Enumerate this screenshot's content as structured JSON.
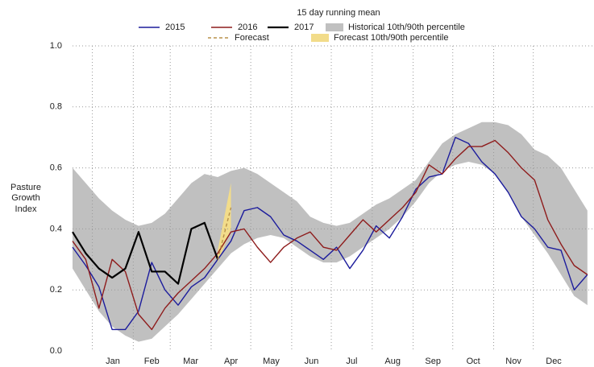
{
  "chart_data": {
    "type": "line",
    "title": "15 day running mean",
    "y_label": [
      "Pasture",
      "Growth",
      "Index"
    ],
    "x": [
      -15,
      -5,
      5,
      15,
      25,
      35,
      45,
      55,
      65,
      75,
      85,
      95,
      105,
      115,
      125,
      135,
      145,
      155,
      165,
      175,
      185,
      195,
      205,
      215,
      225,
      235,
      245,
      255,
      265,
      275,
      285,
      295,
      305,
      315,
      325,
      335,
      345,
      355,
      365,
      375
    ],
    "xlim": [
      -15,
      380
    ],
    "xticks": [
      {
        "value": 0,
        "label": "Jan"
      },
      {
        "value": 31,
        "label": "Feb"
      },
      {
        "value": 59,
        "label": "Mar"
      },
      {
        "value": 90,
        "label": "Apr"
      },
      {
        "value": 120,
        "label": "May"
      },
      {
        "value": 151,
        "label": "Jun"
      },
      {
        "value": 181,
        "label": "Jul"
      },
      {
        "value": 212,
        "label": "Aug"
      },
      {
        "value": 243,
        "label": "Sep"
      },
      {
        "value": 273,
        "label": "Oct"
      },
      {
        "value": 304,
        "label": "Nov"
      },
      {
        "value": 334,
        "label": "Dec"
      }
    ],
    "ylim": [
      0,
      1
    ],
    "yticks": [
      {
        "value": 0,
        "label": "0.0"
      },
      0.2,
      0.4,
      0.6,
      0.8,
      {
        "value": 1,
        "label": "1.0"
      }
    ],
    "grid": true,
    "bands": [
      {
        "name": "Historical 10th/90th percentile",
        "color": "#c0c0c0",
        "upper": [
          0.6,
          0.55,
          0.5,
          0.46,
          0.43,
          0.41,
          0.42,
          0.45,
          0.5,
          0.55,
          0.58,
          0.57,
          0.59,
          0.6,
          0.58,
          0.55,
          0.52,
          0.49,
          0.44,
          0.42,
          0.41,
          0.42,
          0.45,
          0.48,
          0.5,
          0.53,
          0.56,
          0.62,
          0.68,
          0.71,
          0.73,
          0.75,
          0.75,
          0.74,
          0.71,
          0.66,
          0.64,
          0.6,
          0.53,
          0.46
        ],
        "lower": [
          0.27,
          0.2,
          0.13,
          0.08,
          0.05,
          0.03,
          0.04,
          0.08,
          0.12,
          0.17,
          0.22,
          0.27,
          0.32,
          0.35,
          0.37,
          0.38,
          0.37,
          0.34,
          0.31,
          0.29,
          0.29,
          0.31,
          0.34,
          0.37,
          0.4,
          0.44,
          0.49,
          0.55,
          0.59,
          0.61,
          0.62,
          0.61,
          0.58,
          0.52,
          0.44,
          0.38,
          0.32,
          0.25,
          0.18,
          0.15
        ]
      },
      {
        "name": "Forecast 10th/90th percentile",
        "color": "#f2dc8a",
        "upper": [
          null,
          null,
          null,
          null,
          null,
          null,
          null,
          null,
          null,
          null,
          null,
          0.33,
          0.55,
          null,
          null,
          null,
          null,
          null,
          null,
          null,
          null,
          null,
          null,
          null,
          null,
          null,
          null,
          null,
          null,
          null,
          null,
          null,
          null,
          null,
          null,
          null,
          null,
          null,
          null,
          null
        ],
        "lower": [
          null,
          null,
          null,
          null,
          null,
          null,
          null,
          null,
          null,
          null,
          null,
          0.29,
          0.4,
          null,
          null,
          null,
          null,
          null,
          null,
          null,
          null,
          null,
          null,
          null,
          null,
          null,
          null,
          null,
          null,
          null,
          null,
          null,
          null,
          null,
          null,
          null,
          null,
          null,
          null,
          null
        ]
      }
    ],
    "series": [
      {
        "name": "2015",
        "color": "#1c1c9c",
        "values": [
          0.34,
          0.28,
          0.21,
          0.07,
          0.07,
          0.13,
          0.29,
          0.2,
          0.15,
          0.21,
          0.24,
          0.3,
          0.36,
          0.46,
          0.47,
          0.44,
          0.38,
          0.36,
          0.33,
          0.3,
          0.34,
          0.27,
          0.33,
          0.41,
          0.37,
          0.44,
          0.53,
          0.57,
          0.58,
          0.7,
          0.68,
          0.62,
          0.58,
          0.52,
          0.44,
          0.4,
          0.34,
          0.33,
          0.2,
          0.25
        ]
      },
      {
        "name": "2016",
        "color": "#8e1c1c",
        "values": [
          0.36,
          0.3,
          0.14,
          0.3,
          0.26,
          0.12,
          0.07,
          0.14,
          0.19,
          0.23,
          0.27,
          0.32,
          0.39,
          0.4,
          0.34,
          0.29,
          0.34,
          0.37,
          0.39,
          0.34,
          0.33,
          0.38,
          0.43,
          0.39,
          0.43,
          0.47,
          0.52,
          0.61,
          0.58,
          0.63,
          0.67,
          0.67,
          0.69,
          0.65,
          0.6,
          0.56,
          0.43,
          0.35,
          0.28,
          0.25
        ]
      },
      {
        "name": "2017",
        "color": "#000000",
        "width": 2.2,
        "values": [
          0.39,
          0.32,
          0.27,
          0.24,
          0.27,
          0.39,
          0.26,
          0.26,
          0.22,
          0.4,
          0.42,
          0.3,
          null,
          null,
          null,
          null,
          null,
          null,
          null,
          null,
          null,
          null,
          null,
          null,
          null,
          null,
          null,
          null,
          null,
          null,
          null,
          null,
          null,
          null,
          null,
          null,
          null,
          null,
          null,
          null
        ]
      },
      {
        "name": "Forecast",
        "color": "#b8914a",
        "dashed": true,
        "values": [
          null,
          null,
          null,
          null,
          null,
          null,
          null,
          null,
          null,
          null,
          null,
          0.3,
          0.47,
          null,
          null,
          null,
          null,
          null,
          null,
          null,
          null,
          null,
          null,
          null,
          null,
          null,
          null,
          null,
          null,
          null,
          null,
          null,
          null,
          null,
          null,
          null,
          null,
          null,
          null,
          null
        ]
      }
    ]
  }
}
